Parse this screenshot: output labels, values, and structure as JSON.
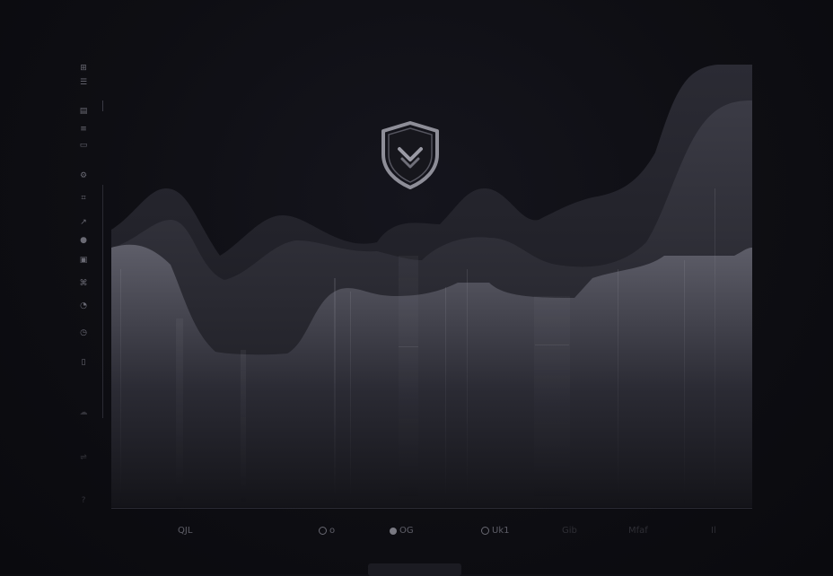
{
  "icons": {
    "shield": "shield-check-icon",
    "rail": [
      "grid-icon",
      "list-icon",
      "table-icon",
      "layers-icon",
      "folder-icon",
      "settings-icon",
      "code-icon",
      "dot-icon",
      "calendar-icon",
      "tag-icon",
      "link-icon",
      "clock-icon",
      "doc-icon",
      "cloud-icon",
      "chat-icon",
      "share-icon"
    ]
  },
  "axis": {
    "labels": [
      {
        "text": "QJL"
      },
      {
        "text": "o"
      },
      {
        "text": "OG"
      },
      {
        "text": "Uk1"
      },
      {
        "text": "Gib"
      },
      {
        "text": "Mfaf"
      },
      {
        "text": "Il"
      }
    ]
  },
  "colors": {
    "background": "#0e0e13",
    "area_back": "#2a2a33",
    "area_front": "#5d5d68",
    "accent": "#8f8f99"
  }
}
